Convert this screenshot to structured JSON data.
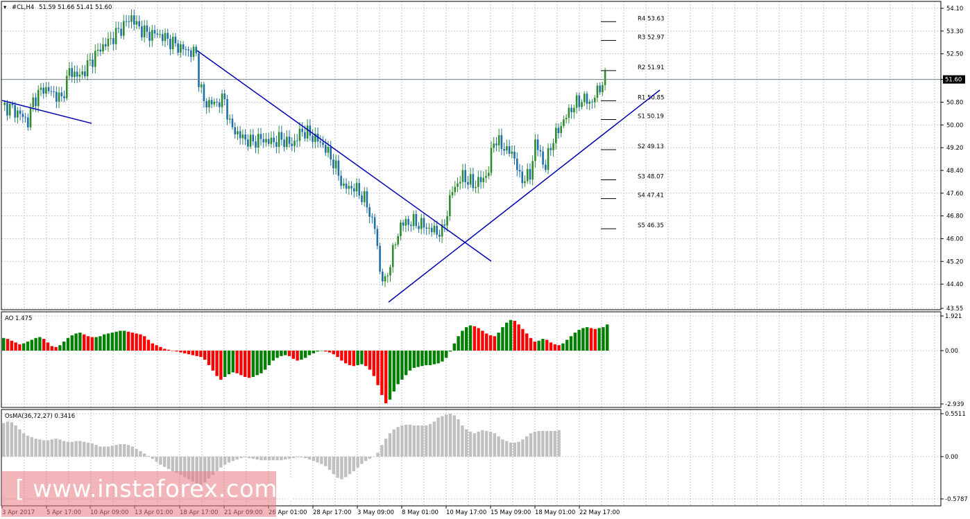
{
  "header": {
    "symbol": "#CL,H4",
    "ohlc": "51.59 51.66 51.41 51.60"
  },
  "watermark": {
    "text": "[ www.instaforex.com ]"
  },
  "colors": {
    "bull_candle": "#2e8b2e",
    "bear_candle": "#1e6fa8",
    "trendline": "#0000b4",
    "ao_up": "#008000",
    "ao_down": "#ff0000",
    "osma": "#c0c0c0",
    "grid": "#c8c8c8"
  },
  "chart_data": [
    {
      "type": "candlestick",
      "title": "#CL,H4",
      "current_price": 51.6,
      "ylim": [
        43.55,
        54.1
      ],
      "y_ticks": [
        "54.10",
        "53.30",
        "52.50",
        "51.60",
        "50.80",
        "50.00",
        "49.20",
        "48.40",
        "47.60",
        "46.80",
        "46.00",
        "45.20",
        "44.40",
        "43.55"
      ],
      "x_ticks": [
        "3 Apr 2017",
        "5 Apr 17:00",
        "10 Apr 09:00",
        "13 Apr 01:00",
        "18 Apr 17:00",
        "21 Apr 09:00",
        "26 Apr 01:00",
        "28 Apr 17:00",
        "3 May 09:00",
        "8 May 01:00",
        "10 May 17:00",
        "15 May 09:00",
        "18 May 01:00",
        "22 May 17:00"
      ],
      "pivot_levels": [
        {
          "name": "R4",
          "value": 53.63
        },
        {
          "name": "R3",
          "value": 52.97
        },
        {
          "name": "R2",
          "value": 51.91
        },
        {
          "name": "R1",
          "value": 50.85
        },
        {
          "name": "S1",
          "value": 50.19
        },
        {
          "name": "S2",
          "value": 49.13
        },
        {
          "name": "S3",
          "value": 48.07
        },
        {
          "name": "S4",
          "value": 47.41
        },
        {
          "name": "S5",
          "value": 46.35
        }
      ],
      "close_path": [
        [
          0,
          50.7
        ],
        [
          4,
          50.55
        ],
        [
          8,
          50.3
        ],
        [
          10,
          50.1
        ],
        [
          12,
          50.85
        ],
        [
          16,
          51.3
        ],
        [
          20,
          51.1
        ],
        [
          23,
          50.9
        ],
        [
          26,
          51.9
        ],
        [
          30,
          51.7
        ],
        [
          34,
          52.2
        ],
        [
          38,
          52.7
        ],
        [
          42,
          53.0
        ],
        [
          46,
          53.4
        ],
        [
          50,
          53.8
        ],
        [
          52,
          53.5
        ],
        [
          56,
          53.2
        ],
        [
          60,
          53.2
        ],
        [
          64,
          53.0
        ],
        [
          68,
          52.75
        ],
        [
          72,
          52.6
        ],
        [
          75,
          52.5
        ],
        [
          76,
          51.6
        ],
        [
          78,
          50.8
        ],
        [
          82,
          50.75
        ],
        [
          86,
          50.9
        ],
        [
          88,
          50.0
        ],
        [
          92,
          49.6
        ],
        [
          96,
          49.4
        ],
        [
          100,
          49.5
        ],
        [
          104,
          49.4
        ],
        [
          108,
          49.5
        ],
        [
          112,
          49.3
        ],
        [
          116,
          49.8
        ],
        [
          120,
          49.6
        ],
        [
          124,
          49.3
        ],
        [
          128,
          48.7
        ],
        [
          132,
          47.8
        ],
        [
          136,
          47.8
        ],
        [
          140,
          47.4
        ],
        [
          144,
          46.4
        ],
        [
          146,
          44.9
        ],
        [
          148,
          44.4
        ],
        [
          150,
          45.2
        ],
        [
          154,
          46.5
        ],
        [
          158,
          46.6
        ],
        [
          162,
          46.5
        ],
        [
          166,
          46.3
        ],
        [
          170,
          46.2
        ],
        [
          174,
          47.7
        ],
        [
          178,
          48.2
        ],
        [
          182,
          47.9
        ],
        [
          186,
          48.1
        ],
        [
          188,
          48.4
        ],
        [
          190,
          49.5
        ],
        [
          194,
          49.2
        ],
        [
          198,
          48.9
        ],
        [
          200,
          48.1
        ],
        [
          204,
          48.2
        ],
        [
          206,
          49.4
        ],
        [
          210,
          48.5
        ],
        [
          212,
          49.3
        ],
        [
          216,
          50.0
        ],
        [
          220,
          50.6
        ],
        [
          224,
          50.9
        ],
        [
          228,
          50.8
        ],
        [
          230,
          51.2
        ],
        [
          233,
          51.6
        ]
      ]
    },
    {
      "type": "bar",
      "title": "AO",
      "label": "AO 1.475",
      "value": 1.475,
      "ylim": [
        -2.939,
        1.921
      ],
      "y_ticks": [
        "1.921",
        "0.00",
        "-2.939"
      ],
      "values": [
        0.7,
        0.65,
        0.55,
        0.45,
        0.35,
        0.4,
        0.5,
        0.6,
        0.7,
        0.75,
        0.65,
        0.45,
        0.25,
        0.2,
        0.3,
        0.5,
        0.7,
        0.85,
        0.95,
        1.0,
        0.9,
        0.8,
        0.75,
        0.75,
        0.8,
        0.9,
        0.95,
        1.0,
        1.05,
        1.1,
        1.1,
        1.05,
        1.0,
        0.95,
        0.9,
        0.8,
        0.6,
        0.4,
        0.3,
        0.2,
        0.1,
        0.05,
        0.0,
        -0.05,
        -0.1,
        -0.15,
        -0.2,
        -0.25,
        -0.3,
        -0.35,
        -0.5,
        -0.8,
        -1.1,
        -1.4,
        -1.6,
        -1.45,
        -1.3,
        -1.2,
        -1.25,
        -1.35,
        -1.45,
        -1.5,
        -1.45,
        -1.35,
        -1.25,
        -1.05,
        -0.8,
        -0.55,
        -0.4,
        -0.3,
        -0.25,
        -0.3,
        -0.45,
        -0.55,
        -0.5,
        -0.4,
        -0.25,
        -0.15,
        -0.05,
        0.0,
        -0.05,
        -0.1,
        -0.2,
        -0.35,
        -0.55,
        -0.7,
        -0.8,
        -0.85,
        -0.8,
        -0.75,
        -0.85,
        -1.05,
        -1.4,
        -1.9,
        -2.45,
        -2.9,
        -2.7,
        -2.25,
        -1.85,
        -1.6,
        -1.35,
        -1.1,
        -0.95,
        -0.9,
        -0.85,
        -0.8,
        -0.8,
        -0.75,
        -0.7,
        -0.6,
        -0.4,
        -0.05,
        0.4,
        0.8,
        1.1,
        1.3,
        1.4,
        1.35,
        1.25,
        1.1,
        0.95,
        0.85,
        0.8,
        1.0,
        1.3,
        1.55,
        1.7,
        1.65,
        1.45,
        1.2,
        0.95,
        0.7,
        0.5,
        0.55,
        0.65,
        0.6,
        0.45,
        0.35,
        0.3,
        0.4,
        0.6,
        0.8,
        1.0,
        1.15,
        1.25,
        1.3,
        1.25,
        1.2,
        1.25,
        1.3,
        1.45
      ]
    },
    {
      "type": "bar",
      "title": "OsMA(36,72,27)",
      "label": "OsMA(36,72,27) 0.3416",
      "value": 0.3416,
      "ylim": [
        -0.5787,
        0.5511
      ],
      "y_ticks": [
        "0.5511",
        "0.00",
        "-0.5787"
      ],
      "values": [
        0.43,
        0.45,
        0.44,
        0.4,
        0.35,
        0.3,
        0.27,
        0.25,
        0.23,
        0.22,
        0.21,
        0.21,
        0.22,
        0.23,
        0.22,
        0.2,
        0.19,
        0.19,
        0.2,
        0.2,
        0.19,
        0.18,
        0.17,
        0.15,
        0.13,
        0.13,
        0.13,
        0.14,
        0.15,
        0.16,
        0.16,
        0.15,
        0.13,
        0.1,
        0.07,
        0.04,
        0.01,
        -0.03,
        -0.07,
        -0.11,
        -0.14,
        -0.17,
        -0.2,
        -0.22,
        -0.25,
        -0.28,
        -0.31,
        -0.34,
        -0.37,
        -0.38,
        -0.35,
        -0.3,
        -0.25,
        -0.2,
        -0.15,
        -0.11,
        -0.08,
        -0.06,
        -0.04,
        -0.02,
        -0.01,
        -0.02,
        -0.03,
        -0.04,
        -0.05,
        -0.05,
        -0.05,
        -0.05,
        -0.05,
        -0.05,
        -0.04,
        -0.03,
        -0.02,
        -0.01,
        -0.01,
        -0.02,
        -0.04,
        -0.06,
        -0.08,
        -0.1,
        -0.13,
        -0.18,
        -0.24,
        -0.29,
        -0.31,
        -0.28,
        -0.24,
        -0.2,
        -0.15,
        -0.1,
        -0.06,
        -0.03,
        0.0,
        0.05,
        0.15,
        0.23,
        0.3,
        0.35,
        0.38,
        0.4,
        0.41,
        0.41,
        0.4,
        0.4,
        0.4,
        0.4,
        0.42,
        0.45,
        0.5,
        0.52,
        0.54,
        0.55,
        0.53,
        0.48,
        0.4,
        0.35,
        0.32,
        0.3,
        0.32,
        0.34,
        0.33,
        0.32,
        0.3,
        0.26,
        0.22,
        0.2,
        0.18,
        0.18,
        0.19,
        0.22,
        0.26,
        0.3,
        0.32,
        0.33,
        0.33,
        0.33,
        0.33,
        0.33,
        0.34
      ]
    }
  ]
}
